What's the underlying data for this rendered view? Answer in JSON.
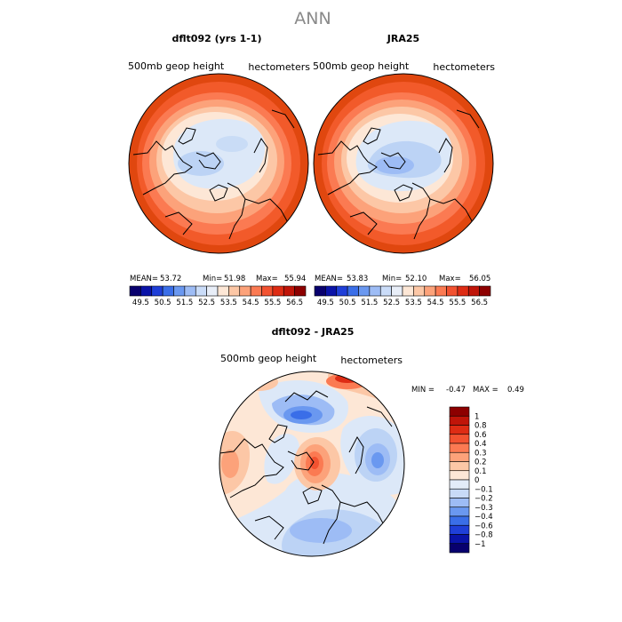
{
  "page_title": "ANN",
  "chart_data": [
    {
      "type": "polar-contour-map",
      "title": "dflt092 (yrs 1-1)",
      "variable": "500mb geop height",
      "units": "hectometers",
      "stats": {
        "mean_label": "MEAN=",
        "mean": "53.72",
        "min_label": "Min=",
        "min": "51.98",
        "max_label": "Max=",
        "max": "55.94"
      },
      "colorbar": {
        "orientation": "horizontal",
        "ticks": [
          "49.5",
          "50.5",
          "51.5",
          "52.5",
          "53.5",
          "54.5",
          "55.5",
          "56.5"
        ],
        "colors": [
          "#08006e",
          "#0a13a8",
          "#1f3fd8",
          "#3a6ee8",
          "#6a98f0",
          "#9dbcf5",
          "#cadcf8",
          "#e8eef8",
          "#fde7d6",
          "#fcc7a6",
          "#fca27a",
          "#fb7a52",
          "#f25230",
          "#de2c14",
          "#c01509",
          "#8d0000"
        ]
      }
    },
    {
      "type": "polar-contour-map",
      "title": "JRA25",
      "variable": "500mb geop height",
      "units": "hectometers",
      "stats": {
        "mean_label": "MEAN=",
        "mean": "53.83",
        "min_label": "Min=",
        "min": "52.10",
        "max_label": "Max=",
        "max": "56.05"
      },
      "colorbar": {
        "orientation": "horizontal",
        "ticks": [
          "49.5",
          "50.5",
          "51.5",
          "52.5",
          "53.5",
          "54.5",
          "55.5",
          "56.5"
        ],
        "colors": [
          "#08006e",
          "#0a13a8",
          "#1f3fd8",
          "#3a6ee8",
          "#6a98f0",
          "#9dbcf5",
          "#cadcf8",
          "#e8eef8",
          "#fde7d6",
          "#fcc7a6",
          "#fca27a",
          "#fb7a52",
          "#f25230",
          "#de2c14",
          "#c01509",
          "#8d0000"
        ]
      }
    },
    {
      "type": "polar-contour-map",
      "title": "dflt092 - JRA25",
      "variable": "500mb geop height",
      "units": "hectometers",
      "stats": {
        "min_label": "MIN =",
        "min": "-0.47",
        "max_label": "MAX =",
        "max": "0.49"
      },
      "colorbar": {
        "orientation": "vertical",
        "ticks": [
          "1",
          "0.8",
          "0.6",
          "0.4",
          "0.3",
          "0.2",
          "0.1",
          "0",
          "−0.1",
          "−0.2",
          "−0.3",
          "−0.4",
          "−0.6",
          "−0.8",
          "−1"
        ],
        "colors": [
          "#8d0000",
          "#c01509",
          "#de2c14",
          "#f25230",
          "#fb7a52",
          "#fca27a",
          "#fcc7a6",
          "#fde7d6",
          "#e3ecf9",
          "#c8daf7",
          "#9dbcf5",
          "#6a98f0",
          "#3a6ee8",
          "#1f3fd8",
          "#0a13a8",
          "#08006e"
        ]
      }
    }
  ]
}
